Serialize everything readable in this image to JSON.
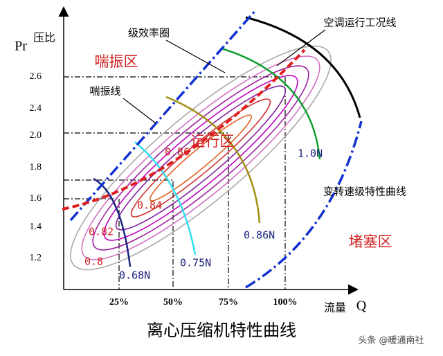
{
  "title": "离心压缩机特性曲线",
  "watermark": "头条 @暖通南社",
  "y_axis": {
    "symbol": "Pr",
    "label": "压比",
    "ticks": [
      "2.6",
      "2.4",
      "2.0",
      "1.8",
      "1.6",
      "1.4",
      "1.2"
    ]
  },
  "x_axis": {
    "symbol": "Q",
    "label": "流量",
    "ticks": [
      "25%",
      "50%",
      "75%",
      "100%"
    ]
  },
  "regions": {
    "surge": "喘振区",
    "operating": "运行区",
    "choke": "堵塞区"
  },
  "annotations": {
    "efficiency": "级效率圈",
    "surge_line": "喘振线",
    "operating_line": "空调运行工况线",
    "speed_curves": "变转速级特性曲线"
  },
  "efficiency_labels": [
    "0.8",
    "0.82",
    "0.84",
    "0.86"
  ],
  "speed_labels": [
    "0.68N",
    "0.75N",
    "0.86N",
    "1.0N"
  ]
}
